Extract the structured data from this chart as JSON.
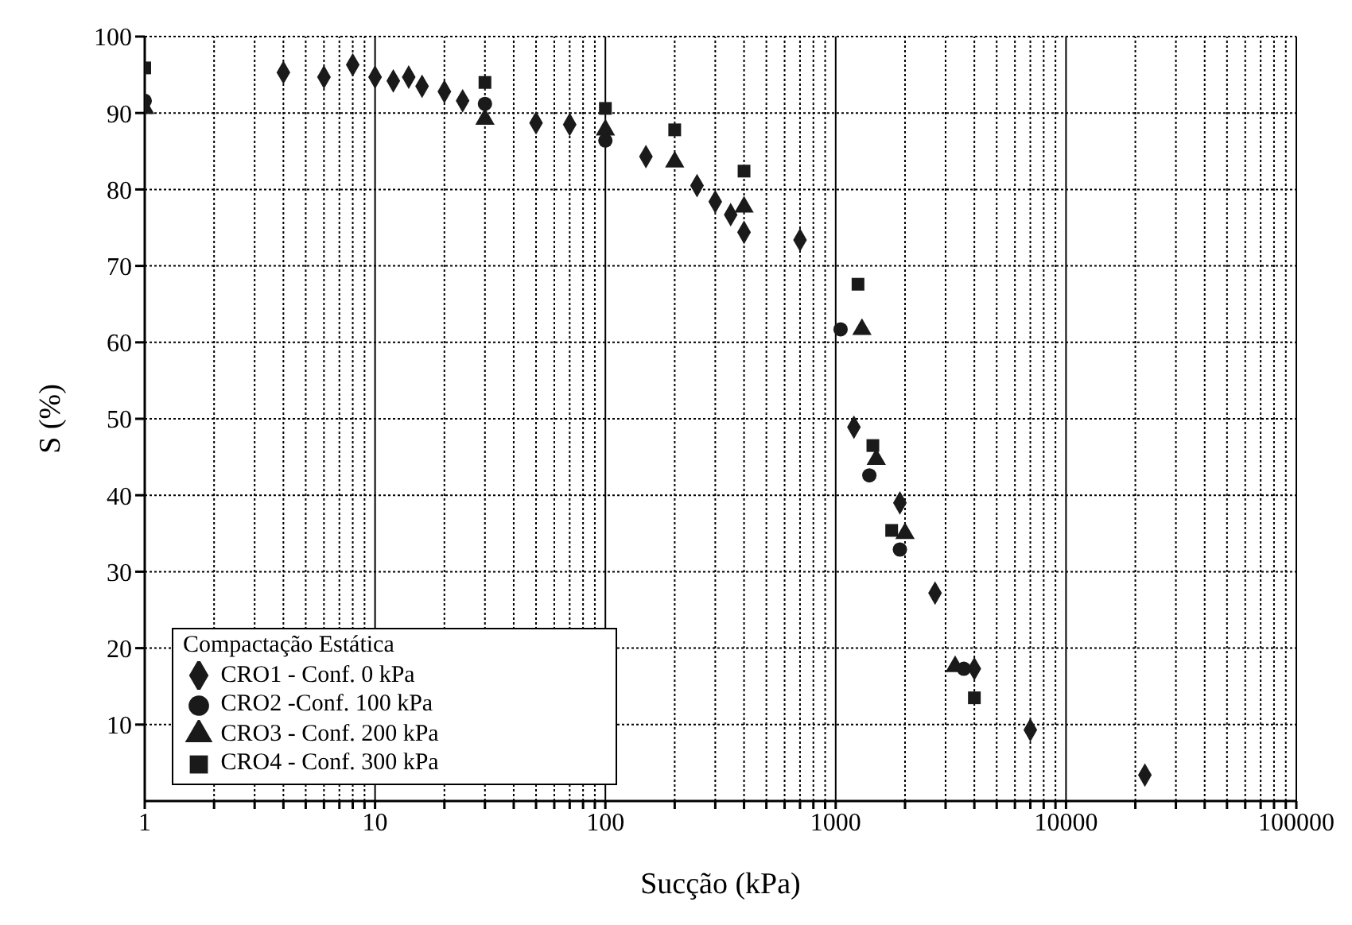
{
  "chart_data": {
    "type": "scatter",
    "xlabel": "Sucção (kPa)",
    "ylabel": "S (%)",
    "legend_title": "Compactação Estática",
    "log": "x",
    "grid": true,
    "legend": "bottom left",
    "xlim": [
      1,
      100000
    ],
    "ylim": [
      0,
      100
    ],
    "xticks": [
      1,
      {
        "value": 2,
        "label": null
      },
      {
        "value": 3,
        "label": null
      },
      {
        "value": 4,
        "label": null
      },
      {
        "value": 5,
        "label": null
      },
      {
        "value": 6,
        "label": null
      },
      {
        "value": 7,
        "label": null
      },
      {
        "value": 8,
        "label": null
      },
      {
        "value": 9,
        "label": null
      },
      10,
      {
        "value": 20,
        "label": null
      },
      {
        "value": 30,
        "label": null
      },
      {
        "value": 40,
        "label": null
      },
      {
        "value": 50,
        "label": null
      },
      {
        "value": 60,
        "label": null
      },
      {
        "value": 70,
        "label": null
      },
      {
        "value": 80,
        "label": null
      },
      {
        "value": 90,
        "label": null
      },
      100,
      {
        "value": 200,
        "label": null
      },
      {
        "value": 300,
        "label": null
      },
      {
        "value": 400,
        "label": null
      },
      {
        "value": 500,
        "label": null
      },
      {
        "value": 600,
        "label": null
      },
      {
        "value": 700,
        "label": null
      },
      {
        "value": 800,
        "label": null
      },
      {
        "value": 900,
        "label": null
      },
      1000,
      {
        "value": 2000,
        "label": null
      },
      {
        "value": 3000,
        "label": null
      },
      {
        "value": 4000,
        "label": null
      },
      {
        "value": 5000,
        "label": null
      },
      {
        "value": 6000,
        "label": null
      },
      {
        "value": 7000,
        "label": null
      },
      {
        "value": 8000,
        "label": null
      },
      {
        "value": 9000,
        "label": null
      },
      10000,
      {
        "value": 20000,
        "label": null
      },
      {
        "value": 30000,
        "label": null
      },
      {
        "value": 40000,
        "label": null
      },
      {
        "value": 50000,
        "label": null
      },
      {
        "value": 60000,
        "label": null
      },
      {
        "value": 70000,
        "label": null
      },
      {
        "value": 80000,
        "label": null
      },
      {
        "value": 90000,
        "label": null
      },
      100000
    ],
    "yticks": [
      10,
      20,
      30,
      40,
      50,
      60,
      70,
      80,
      90,
      100
    ],
    "series": [
      {
        "name": "CRO1 - Conf. 0 kPa",
        "color": "#1a1a1a",
        "marker": "diamond",
        "x": [
          4,
          6,
          8,
          10,
          12,
          14,
          16,
          20,
          24,
          50,
          70,
          150,
          250,
          300,
          350,
          400,
          700,
          1200,
          1900,
          2700,
          4000,
          7000,
          22000
        ],
        "values": [
          95.3,
          94.7,
          96.3,
          94.7,
          94.2,
          94.7,
          93.5,
          92.8,
          91.6,
          88.7,
          88.5,
          84.3,
          80.5,
          78.4,
          76.7,
          74.4,
          73.4,
          48.9,
          39,
          27.2,
          17.3,
          9.3,
          3.4
        ]
      },
      {
        "name": "CRO2 -Conf. 100 kPa",
        "color": "#1a1a1a",
        "marker": "circle",
        "x": [
          1,
          30,
          100,
          200,
          400,
          1050,
          1400,
          1900,
          3600
        ],
        "values": [
          91.6,
          91.2,
          86.4,
          null,
          null,
          61.7,
          42.6,
          32.9,
          17.3
        ]
      },
      {
        "name": "CRO3 - Conf. 200 kPa",
        "color": "#1a1a1a",
        "marker": "triangle",
        "x": [
          1,
          30,
          100,
          200,
          400,
          1300,
          1500,
          2000,
          3300
        ],
        "values": [
          90.6,
          89.2,
          87.8,
          83.6,
          77.7,
          61.7,
          44.7,
          35,
          17.6
        ]
      },
      {
        "name": "CRO4 - Conf. 300 kPa",
        "color": "#1a1a1a",
        "marker": "square",
        "x": [
          1,
          30,
          100,
          200,
          400,
          1250,
          1450,
          1750,
          4000
        ],
        "values": [
          95.9,
          94,
          90.6,
          87.8,
          82.4,
          67.6,
          46.5,
          35.4,
          13.5
        ]
      }
    ]
  }
}
